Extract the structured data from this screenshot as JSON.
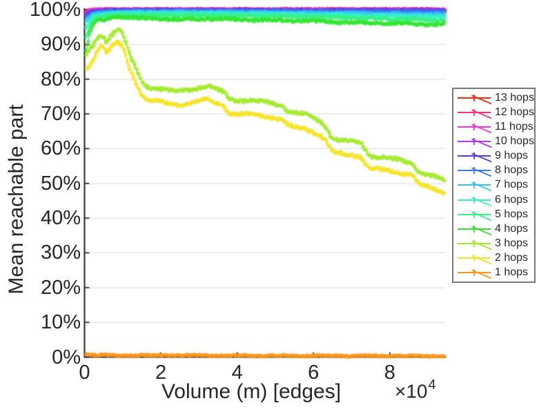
{
  "figure": {
    "background": "#ffffff",
    "text_color": "#262626",
    "grid_color": "#e6e6e6",
    "axis_color": "#1f1f1f",
    "legend_border_color": "#777777"
  },
  "axes": {
    "x": {
      "label": "Volume (m) [edges]",
      "exponent_prefix": "×10",
      "exponent": "4",
      "range": [
        0,
        9.45
      ],
      "ticks": [
        {
          "value": 0,
          "label": "0"
        },
        {
          "value": 2,
          "label": "2"
        },
        {
          "value": 4,
          "label": "4"
        },
        {
          "value": 6,
          "label": "6"
        },
        {
          "value": 8,
          "label": "8"
        }
      ]
    },
    "y": {
      "label": "Mean reachable part",
      "range": [
        0,
        100
      ],
      "ticks": [
        {
          "value": 0,
          "label": "0%"
        },
        {
          "value": 10,
          "label": "10%"
        },
        {
          "value": 20,
          "label": "20%"
        },
        {
          "value": 30,
          "label": "30%"
        },
        {
          "value": 40,
          "label": "40%"
        },
        {
          "value": 50,
          "label": "50%"
        },
        {
          "value": 60,
          "label": "60%"
        },
        {
          "value": 70,
          "label": "70%"
        },
        {
          "value": 80,
          "label": "80%"
        },
        {
          "value": 90,
          "label": "90%"
        },
        {
          "value": 100,
          "label": "100%"
        }
      ]
    }
  },
  "chart_data": {
    "type": "line",
    "title": "",
    "xlabel": "Volume (m) [edges]",
    "ylabel": "Mean reachable part",
    "x_unit": "×10^4",
    "y_unit": "%",
    "xlim": [
      0,
      9.45
    ],
    "ylim": [
      0,
      100
    ],
    "grid": "horizontal",
    "marker": "*",
    "legend_position": "right-outside",
    "series": [
      {
        "name": "13 hops",
        "color": "#fa280f",
        "points": [
          [
            0.05,
            99.5
          ],
          [
            0.2,
            99.9
          ],
          [
            0.5,
            99.97
          ],
          [
            9.45,
            99.97
          ]
        ]
      },
      {
        "name": "12 hops",
        "color": "#fb2f80",
        "points": [
          [
            0.05,
            99.4
          ],
          [
            0.2,
            99.85
          ],
          [
            0.5,
            99.95
          ],
          [
            9.45,
            99.93
          ]
        ]
      },
      {
        "name": "11 hops",
        "color": "#f531e5",
        "points": [
          [
            0.05,
            99.2
          ],
          [
            0.2,
            99.75
          ],
          [
            0.5,
            99.9
          ],
          [
            9.45,
            99.88
          ]
        ]
      },
      {
        "name": "10 hops",
        "color": "#b434f5",
        "points": [
          [
            0.05,
            98.8
          ],
          [
            0.2,
            99.6
          ],
          [
            0.5,
            99.85
          ],
          [
            1,
            99.9
          ],
          [
            9.45,
            99.82
          ]
        ]
      },
      {
        "name": "9 hops",
        "color": "#5a35f0",
        "points": [
          [
            0.05,
            98.3
          ],
          [
            0.1,
            98.9
          ],
          [
            0.2,
            99.4
          ],
          [
            0.5,
            99.7
          ],
          [
            1,
            99.8
          ],
          [
            4,
            99.8
          ],
          [
            9.45,
            99.7
          ]
        ]
      },
      {
        "name": "8 hops",
        "color": "#3b78f2",
        "points": [
          [
            0.05,
            97.5
          ],
          [
            0.1,
            98.3
          ],
          [
            0.2,
            98.9
          ],
          [
            0.3,
            99.2
          ],
          [
            0.5,
            99.45
          ],
          [
            1,
            99.6
          ],
          [
            2,
            99.65
          ],
          [
            4,
            99.6
          ],
          [
            6,
            99.5
          ],
          [
            8,
            99.45
          ],
          [
            9.45,
            99.4
          ]
        ]
      },
      {
        "name": "7 hops",
        "color": "#36c6f0",
        "points": [
          [
            0.05,
            96.5
          ],
          [
            0.1,
            97.5
          ],
          [
            0.2,
            98.3
          ],
          [
            0.3,
            98.8
          ],
          [
            0.5,
            99.05
          ],
          [
            1,
            99.3
          ],
          [
            3,
            99.3
          ],
          [
            5,
            99.1
          ],
          [
            7,
            98.9
          ],
          [
            9.45,
            98.6
          ]
        ]
      },
      {
        "name": "6 hops",
        "color": "#35f0cb",
        "points": [
          [
            0.05,
            95.0
          ],
          [
            0.1,
            96.5
          ],
          [
            0.2,
            97.6
          ],
          [
            0.3,
            98.2
          ],
          [
            0.5,
            98.6
          ],
          [
            1,
            98.9
          ],
          [
            3,
            98.9
          ],
          [
            5,
            98.7
          ],
          [
            7,
            98.4
          ],
          [
            8.5,
            98.1
          ],
          [
            9.45,
            97.9
          ]
        ]
      },
      {
        "name": "5 hops",
        "color": "#37f287",
        "points": [
          [
            0.05,
            92.0
          ],
          [
            0.1,
            94.5
          ],
          [
            0.2,
            96.5
          ],
          [
            0.3,
            97.6
          ],
          [
            0.5,
            98.0
          ],
          [
            1,
            98.4
          ],
          [
            3,
            98.3
          ],
          [
            5,
            98.1
          ],
          [
            7,
            97.7
          ],
          [
            8.5,
            97.2
          ],
          [
            9.45,
            97.0
          ]
        ]
      },
      {
        "name": "4 hops",
        "color": "#33e533",
        "points": [
          [
            0.05,
            88
          ],
          [
            0.08,
            90
          ],
          [
            0.12,
            92.5
          ],
          [
            0.18,
            94.5
          ],
          [
            0.25,
            96
          ],
          [
            0.35,
            96.8
          ],
          [
            0.5,
            97
          ],
          [
            0.7,
            97.6
          ],
          [
            0.9,
            98
          ],
          [
            1.1,
            97.8
          ],
          [
            1.4,
            97.5
          ],
          [
            2,
            97.4
          ],
          [
            2.5,
            97.1
          ],
          [
            3,
            97.3
          ],
          [
            3.3,
            97.4
          ],
          [
            3.7,
            97.2
          ],
          [
            4.2,
            97.1
          ],
          [
            5,
            96.9
          ],
          [
            5.7,
            96.8
          ],
          [
            6.3,
            96.6
          ],
          [
            7,
            96.3
          ],
          [
            7.7,
            96.1
          ],
          [
            8.3,
            96.0
          ],
          [
            9,
            95.8
          ],
          [
            9.45,
            95.7
          ]
        ]
      },
      {
        "name": "3 hops",
        "color": "#a3eb2e",
        "points": [
          [
            0.05,
            87
          ],
          [
            0.1,
            87.5
          ],
          [
            0.15,
            88.5
          ],
          [
            0.25,
            90
          ],
          [
            0.35,
            92
          ],
          [
            0.45,
            92.8
          ],
          [
            0.5,
            92.3
          ],
          [
            0.55,
            91.2
          ],
          [
            0.6,
            91
          ],
          [
            0.65,
            91.8
          ],
          [
            0.7,
            93
          ],
          [
            0.8,
            93.8
          ],
          [
            0.9,
            94.3
          ],
          [
            0.95,
            94
          ],
          [
            1.0,
            93
          ],
          [
            1.05,
            91.5
          ],
          [
            1.1,
            90
          ],
          [
            1.15,
            88.3
          ],
          [
            1.2,
            86.5
          ],
          [
            1.3,
            84
          ],
          [
            1.4,
            81.5
          ],
          [
            1.5,
            79.5
          ],
          [
            1.6,
            78.3
          ],
          [
            1.7,
            77.8
          ],
          [
            1.9,
            77.4
          ],
          [
            2.1,
            77
          ],
          [
            2.3,
            76.5
          ],
          [
            2.5,
            76.5
          ],
          [
            2.7,
            77
          ],
          [
            3.0,
            77.6
          ],
          [
            3.15,
            77.9
          ],
          [
            3.3,
            77.7
          ],
          [
            3.5,
            76.8
          ],
          [
            3.65,
            76.3
          ],
          [
            3.75,
            74.8
          ],
          [
            3.9,
            74
          ],
          [
            4.1,
            73.9
          ],
          [
            4.4,
            73.7
          ],
          [
            4.7,
            73.5
          ],
          [
            5.0,
            72.9
          ],
          [
            5.2,
            72.4
          ],
          [
            5.3,
            70.9
          ],
          [
            5.5,
            70.4
          ],
          [
            5.8,
            69.8
          ],
          [
            6.0,
            68.9
          ],
          [
            6.2,
            67.8
          ],
          [
            6.3,
            66.5
          ],
          [
            6.45,
            63.9
          ],
          [
            6.55,
            62.6
          ],
          [
            6.8,
            62.3
          ],
          [
            7.1,
            61.9
          ],
          [
            7.25,
            61.7
          ],
          [
            7.35,
            59.9
          ],
          [
            7.45,
            58.3
          ],
          [
            7.6,
            57.7
          ],
          [
            7.9,
            57.2
          ],
          [
            8.2,
            56.7
          ],
          [
            8.5,
            56.2
          ],
          [
            8.6,
            55.9
          ],
          [
            8.7,
            53.9
          ],
          [
            8.8,
            52.9
          ],
          [
            9.0,
            52.2
          ],
          [
            9.2,
            51.7
          ],
          [
            9.45,
            50.8
          ]
        ]
      },
      {
        "name": "2 hops",
        "color": "#f6e428",
        "points": [
          [
            0.05,
            83
          ],
          [
            0.1,
            83.5
          ],
          [
            0.15,
            84.5
          ],
          [
            0.25,
            86.3
          ],
          [
            0.35,
            88.3
          ],
          [
            0.45,
            90
          ],
          [
            0.5,
            89.4
          ],
          [
            0.55,
            88
          ],
          [
            0.6,
            87.8
          ],
          [
            0.65,
            88.6
          ],
          [
            0.7,
            89.4
          ],
          [
            0.8,
            90
          ],
          [
            0.9,
            90.3
          ],
          [
            0.95,
            90
          ],
          [
            1.0,
            89
          ],
          [
            1.05,
            87.5
          ],
          [
            1.1,
            86
          ],
          [
            1.15,
            84
          ],
          [
            1.2,
            82.5
          ],
          [
            1.3,
            80
          ],
          [
            1.4,
            77.5
          ],
          [
            1.5,
            75.6
          ],
          [
            1.6,
            74.6
          ],
          [
            1.7,
            74
          ],
          [
            1.9,
            73.6
          ],
          [
            2.1,
            73.1
          ],
          [
            2.3,
            72.6
          ],
          [
            2.5,
            72.6
          ],
          [
            2.7,
            73
          ],
          [
            3.0,
            73.7
          ],
          [
            3.15,
            74
          ],
          [
            3.3,
            73.8
          ],
          [
            3.5,
            72.9
          ],
          [
            3.65,
            72.3
          ],
          [
            3.75,
            70.8
          ],
          [
            3.9,
            70
          ],
          [
            4.1,
            69.9
          ],
          [
            4.4,
            69.7
          ],
          [
            4.7,
            69.4
          ],
          [
            5.0,
            68.9
          ],
          [
            5.2,
            68.3
          ],
          [
            5.3,
            66.7
          ],
          [
            5.5,
            66.2
          ],
          [
            5.8,
            65.6
          ],
          [
            6.0,
            64.8
          ],
          [
            6.2,
            63.8
          ],
          [
            6.3,
            62.5
          ],
          [
            6.45,
            59.9
          ],
          [
            6.55,
            58.7
          ],
          [
            6.8,
            58.4
          ],
          [
            7.1,
            58
          ],
          [
            7.25,
            57.8
          ],
          [
            7.35,
            55.9
          ],
          [
            7.45,
            54.4
          ],
          [
            7.6,
            54.1
          ],
          [
            7.9,
            53.7
          ],
          [
            8.2,
            53.2
          ],
          [
            8.5,
            52.8
          ],
          [
            8.6,
            52.5
          ],
          [
            8.7,
            50.4
          ],
          [
            8.8,
            49.4
          ],
          [
            9.0,
            48.8
          ],
          [
            9.2,
            48.2
          ],
          [
            9.45,
            47.3
          ]
        ]
      },
      {
        "name": "1 hops",
        "color": "#fb961b",
        "points": [
          [
            0.03,
            0.8
          ],
          [
            0.2,
            0.6
          ],
          [
            1,
            0.5
          ],
          [
            3,
            0.45
          ],
          [
            5,
            0.4
          ],
          [
            7,
            0.35
          ],
          [
            9.45,
            0.3
          ]
        ]
      }
    ]
  }
}
